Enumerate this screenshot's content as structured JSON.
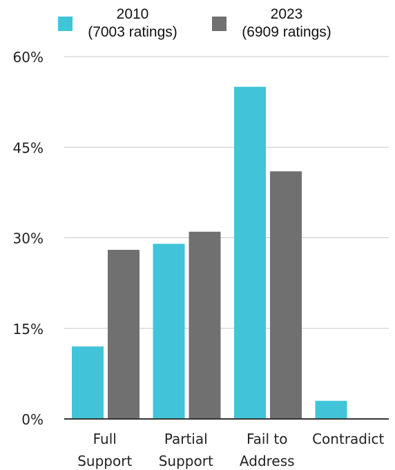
{
  "chart_data": {
    "type": "bar",
    "categories": [
      [
        "Full",
        "Support"
      ],
      [
        "Partial",
        "Support"
      ],
      [
        "Fail to",
        "Address"
      ],
      [
        "Contradict"
      ]
    ],
    "series": [
      {
        "name": [
          "2010",
          "(7003 ratings)"
        ],
        "color": "#41c4d9",
        "values": [
          12,
          29,
          55,
          3
        ]
      },
      {
        "name": [
          "2023",
          "(6909 ratings)"
        ],
        "color": "#707070",
        "values": [
          28,
          31,
          41,
          0
        ]
      }
    ],
    "yticks": [
      "0%",
      "15%",
      "30%",
      "45%",
      "60%"
    ],
    "ylim": [
      0,
      60
    ],
    "grid": true,
    "legend": "top",
    "gridColor": "#c8c8c8",
    "axisColor": "#333333"
  }
}
